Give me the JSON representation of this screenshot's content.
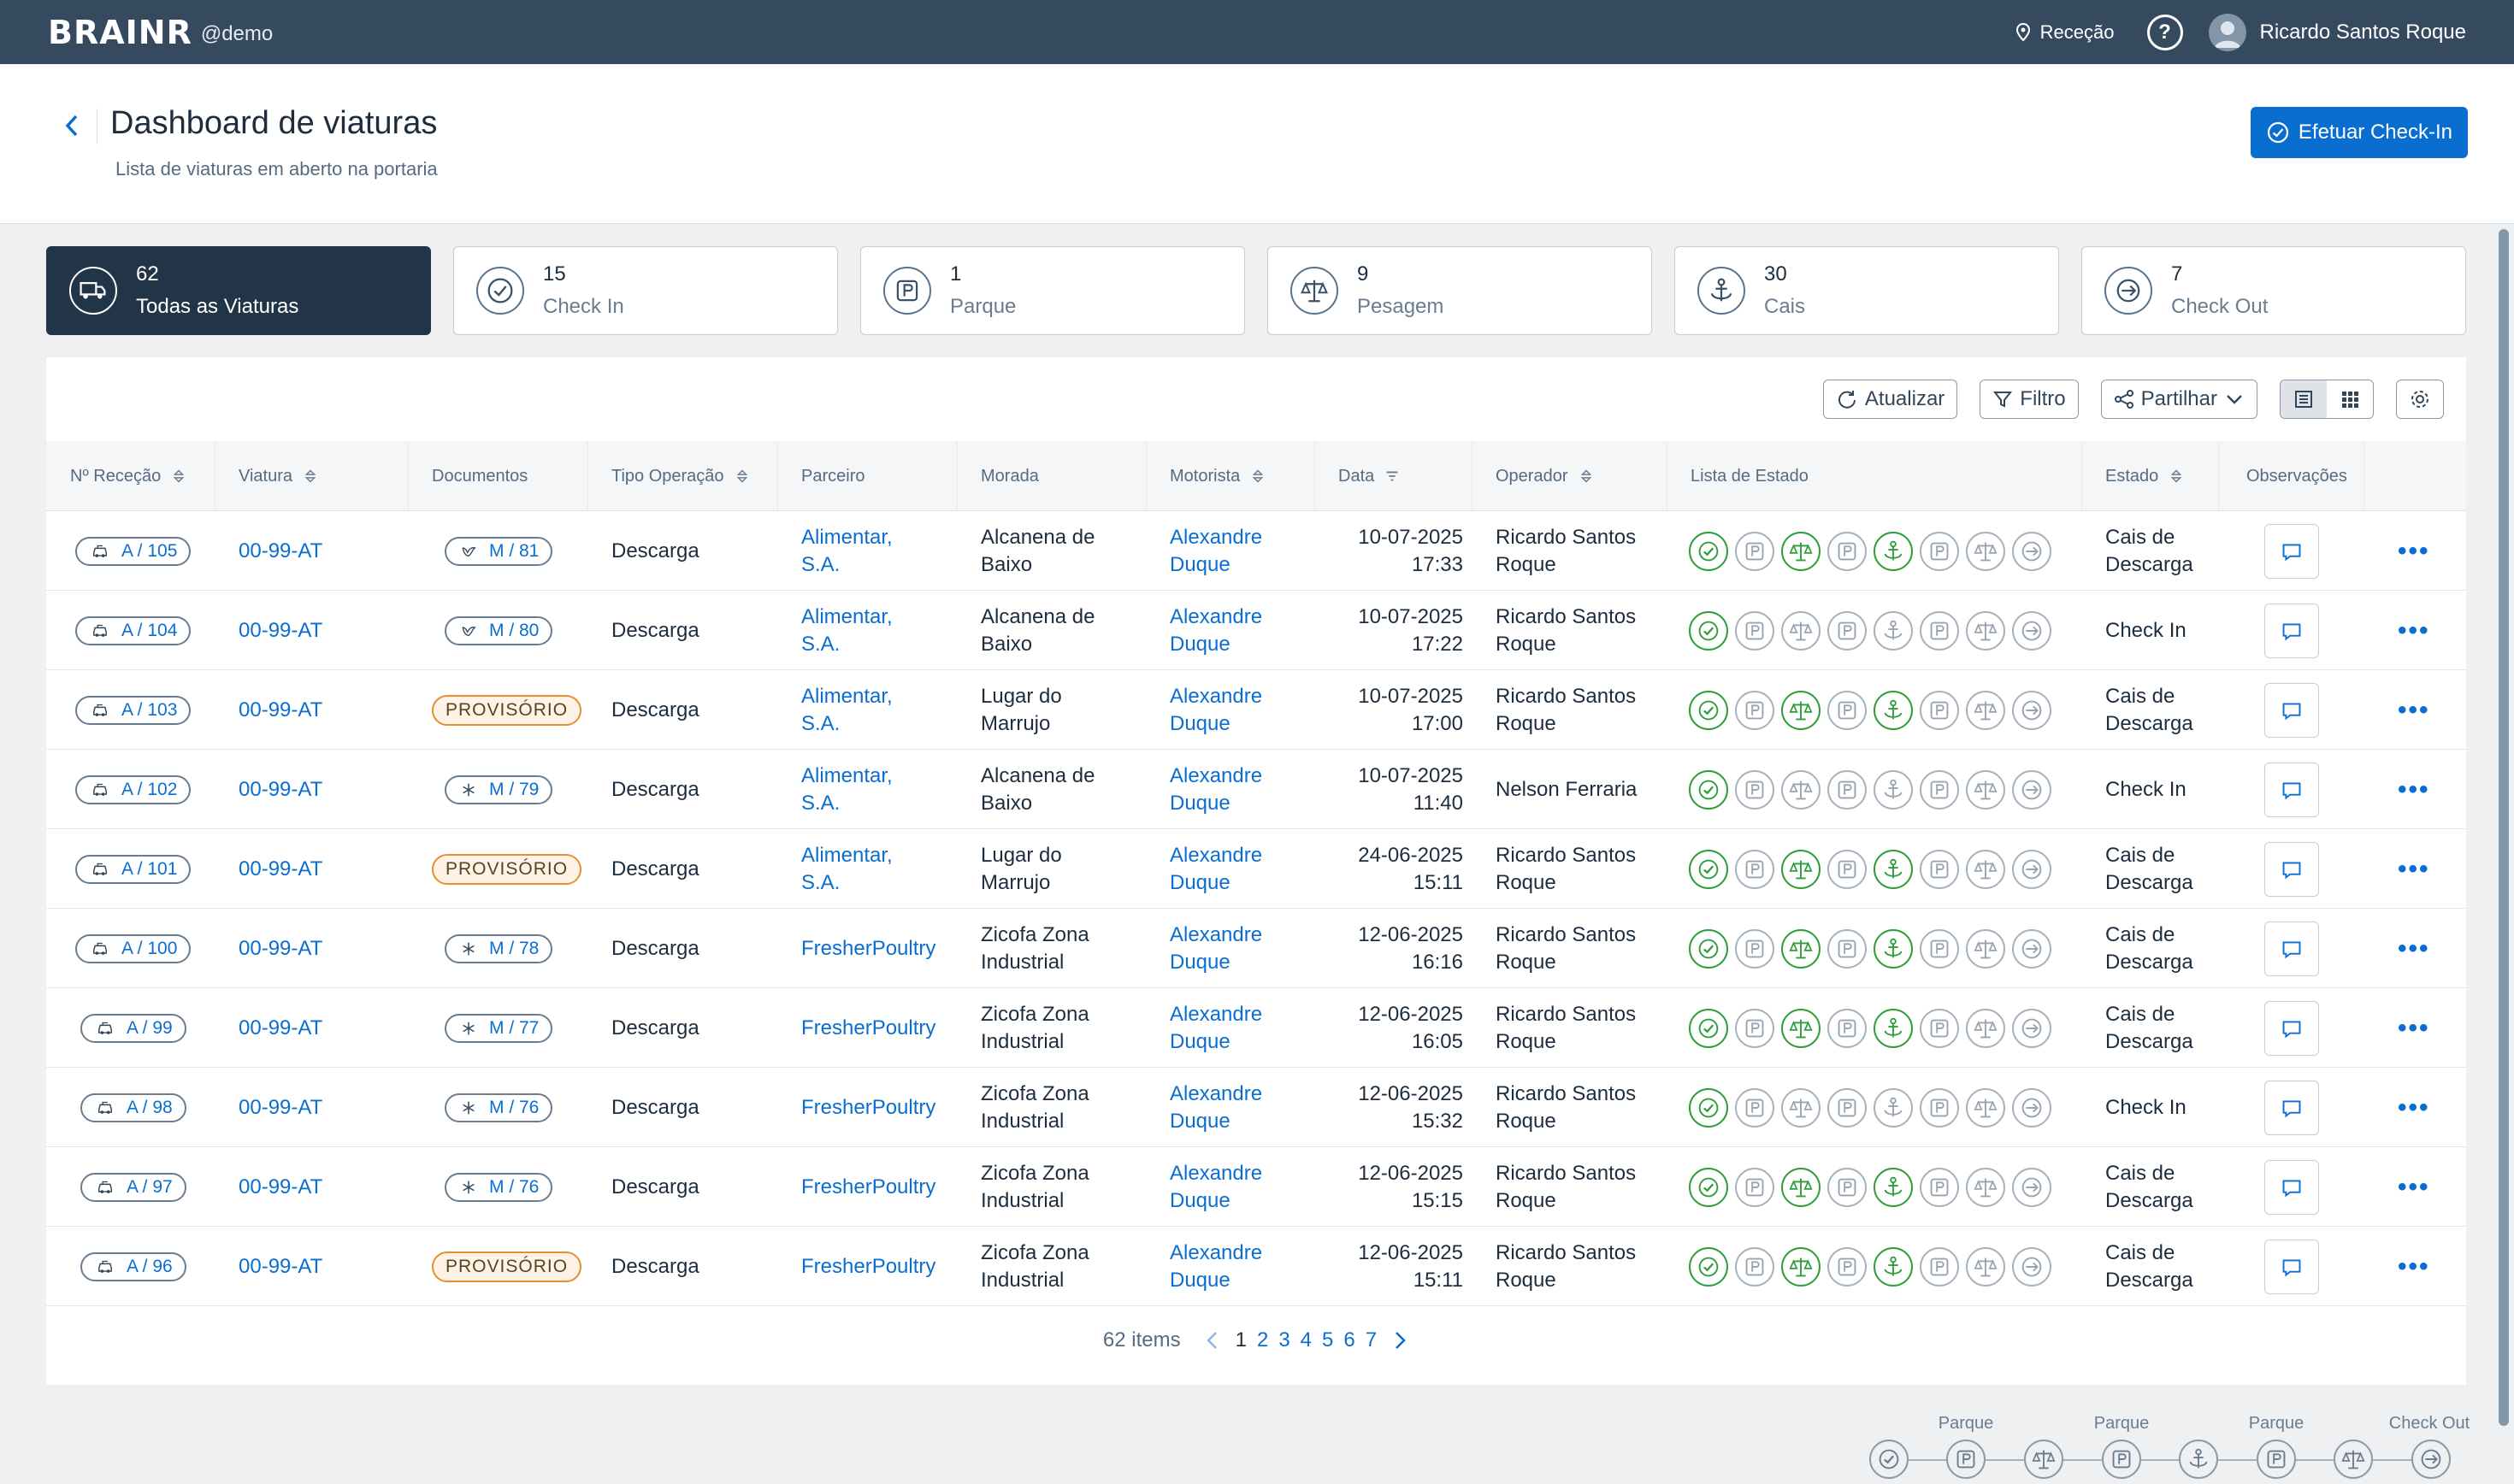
{
  "app": {
    "brand": "BRAINR",
    "account": "@demo",
    "location": "Receção",
    "help": "?",
    "user": "Ricardo Santos Roque"
  },
  "page": {
    "title": "Dashboard de viaturas",
    "subtitle": "Lista de viaturas em aberto na portaria",
    "checkin_button": "Efetuar Check-In"
  },
  "cards": [
    {
      "count": "62",
      "label": "Todas as Viaturas",
      "icon": "truck-icon"
    },
    {
      "count": "15",
      "label": "Check In",
      "icon": "check-circle-icon"
    },
    {
      "count": "1",
      "label": "Parque",
      "icon": "parking-icon"
    },
    {
      "count": "9",
      "label": "Pesagem",
      "icon": "scale-icon"
    },
    {
      "count": "30",
      "label": "Cais",
      "icon": "anchor-icon"
    },
    {
      "count": "7",
      "label": "Check Out",
      "icon": "exit-icon"
    }
  ],
  "toolbar": {
    "refresh": "Atualizar",
    "filter": "Filtro",
    "share": "Partilhar"
  },
  "columns": [
    "Nº Receção",
    "Viatura",
    "Documentos",
    "Tipo Operação",
    "Parceiro",
    "Morada",
    "Motorista",
    "Data",
    "Operador",
    "Lista de Estado",
    "Estado",
    "Observações"
  ],
  "rows": [
    {
      "rec": "A / 105",
      "car": "00-99-AT",
      "doc": "M / 81",
      "doc_type": "bird",
      "op": "Descarga",
      "p1": "Alimentar,",
      "p2": "S.A.",
      "m1": "Alcanena de",
      "m2": "Baixo",
      "d1": "Alexandre",
      "d2": "Duque",
      "dt1": "10-07-2025",
      "dt2": "17:33",
      "o1": "Ricardo Santos",
      "o2": "Roque",
      "st": [
        1,
        0,
        1,
        0,
        1,
        0,
        0,
        0
      ],
      "e1": "Cais de",
      "e2": "Descarga"
    },
    {
      "rec": "A / 104",
      "car": "00-99-AT",
      "doc": "M / 80",
      "doc_type": "bird",
      "op": "Descarga",
      "p1": "Alimentar,",
      "p2": "S.A.",
      "m1": "Alcanena de",
      "m2": "Baixo",
      "d1": "Alexandre",
      "d2": "Duque",
      "dt1": "10-07-2025",
      "dt2": "17:22",
      "o1": "Ricardo Santos",
      "o2": "Roque",
      "st": [
        1,
        0,
        0,
        0,
        0,
        0,
        0,
        0
      ],
      "e1": "Check In",
      "e2": ""
    },
    {
      "rec": "A / 103",
      "car": "00-99-AT",
      "doc": "PROVISÓRIO",
      "doc_type": "prov",
      "op": "Descarga",
      "p1": "Alimentar,",
      "p2": "S.A.",
      "m1": "Lugar do",
      "m2": "Marrujo",
      "d1": "Alexandre",
      "d2": "Duque",
      "dt1": "10-07-2025",
      "dt2": "17:00",
      "o1": "Ricardo Santos",
      "o2": "Roque",
      "st": [
        1,
        0,
        1,
        0,
        1,
        0,
        0,
        0
      ],
      "e1": "Cais de",
      "e2": "Descarga"
    },
    {
      "rec": "A / 102",
      "car": "00-99-AT",
      "doc": "M / 79",
      "doc_type": "snow",
      "op": "Descarga",
      "p1": "Alimentar,",
      "p2": "S.A.",
      "m1": "Alcanena de",
      "m2": "Baixo",
      "d1": "Alexandre",
      "d2": "Duque",
      "dt1": "10-07-2025",
      "dt2": "11:40",
      "o1": "Nelson Ferraria",
      "o2": "",
      "st": [
        1,
        0,
        0,
        0,
        0,
        0,
        0,
        0
      ],
      "e1": "Check In",
      "e2": ""
    },
    {
      "rec": "A / 101",
      "car": "00-99-AT",
      "doc": "PROVISÓRIO",
      "doc_type": "prov",
      "op": "Descarga",
      "p1": "Alimentar,",
      "p2": "S.A.",
      "m1": "Lugar do",
      "m2": "Marrujo",
      "d1": "Alexandre",
      "d2": "Duque",
      "dt1": "24-06-2025",
      "dt2": "15:11",
      "o1": "Ricardo Santos",
      "o2": "Roque",
      "st": [
        1,
        0,
        1,
        0,
        1,
        0,
        0,
        0
      ],
      "e1": "Cais de",
      "e2": "Descarga"
    },
    {
      "rec": "A / 100",
      "car": "00-99-AT",
      "doc": "M / 78",
      "doc_type": "snow",
      "op": "Descarga",
      "p1": "FresherPoultry",
      "p2": "",
      "m1": "Zicofa Zona",
      "m2": "Industrial",
      "d1": "Alexandre",
      "d2": "Duque",
      "dt1": "12-06-2025",
      "dt2": "16:16",
      "o1": "Ricardo Santos",
      "o2": "Roque",
      "st": [
        1,
        0,
        1,
        0,
        1,
        0,
        0,
        0
      ],
      "e1": "Cais de",
      "e2": "Descarga"
    },
    {
      "rec": "A / 99",
      "car": "00-99-AT",
      "doc": "M / 77",
      "doc_type": "snow",
      "op": "Descarga",
      "p1": "FresherPoultry",
      "p2": "",
      "m1": "Zicofa Zona",
      "m2": "Industrial",
      "d1": "Alexandre",
      "d2": "Duque",
      "dt1": "12-06-2025",
      "dt2": "16:05",
      "o1": "Ricardo Santos",
      "o2": "Roque",
      "st": [
        1,
        0,
        1,
        0,
        1,
        0,
        0,
        0
      ],
      "e1": "Cais de",
      "e2": "Descarga"
    },
    {
      "rec": "A / 98",
      "car": "00-99-AT",
      "doc": "M / 76",
      "doc_type": "snow",
      "op": "Descarga",
      "p1": "FresherPoultry",
      "p2": "",
      "m1": "Zicofa Zona",
      "m2": "Industrial",
      "d1": "Alexandre",
      "d2": "Duque",
      "dt1": "12-06-2025",
      "dt2": "15:32",
      "o1": "Ricardo Santos",
      "o2": "Roque",
      "st": [
        1,
        0,
        0,
        0,
        0,
        0,
        0,
        0
      ],
      "e1": "Check In",
      "e2": ""
    },
    {
      "rec": "A / 97",
      "car": "00-99-AT",
      "doc": "M / 76",
      "doc_type": "snow",
      "op": "Descarga",
      "p1": "FresherPoultry",
      "p2": "",
      "m1": "Zicofa Zona",
      "m2": "Industrial",
      "d1": "Alexandre",
      "d2": "Duque",
      "dt1": "12-06-2025",
      "dt2": "15:15",
      "o1": "Ricardo Santos",
      "o2": "Roque",
      "st": [
        1,
        0,
        1,
        0,
        1,
        0,
        0,
        0
      ],
      "e1": "Cais de",
      "e2": "Descarga"
    },
    {
      "rec": "A / 96",
      "car": "00-99-AT",
      "doc": "PROVISÓRIO",
      "doc_type": "prov",
      "op": "Descarga",
      "p1": "FresherPoultry",
      "p2": "",
      "m1": "Zicofa Zona",
      "m2": "Industrial",
      "d1": "Alexandre",
      "d2": "Duque",
      "dt1": "12-06-2025",
      "dt2": "15:11",
      "o1": "Ricardo Santos",
      "o2": "Roque",
      "st": [
        1,
        0,
        1,
        0,
        1,
        0,
        0,
        0
      ],
      "e1": "Cais de",
      "e2": "Descarga"
    }
  ],
  "status_icons": [
    "check-icon",
    "parking-icon",
    "scale-icon",
    "parking-icon",
    "anchor-icon",
    "parking-icon",
    "scale-icon",
    "exit-icon"
  ],
  "pagination": {
    "total": "62 items",
    "pages": [
      "1",
      "2",
      "3",
      "4",
      "5",
      "6",
      "7"
    ],
    "current": "1"
  },
  "legend": {
    "labels": [
      "Parque",
      "Parque",
      "Parque",
      "Check Out"
    ]
  },
  "colors": {
    "topbar": "#354a5f",
    "accent": "#0a6ed1",
    "green": "#2e9e3a",
    "provisional": "#e58f2f"
  }
}
